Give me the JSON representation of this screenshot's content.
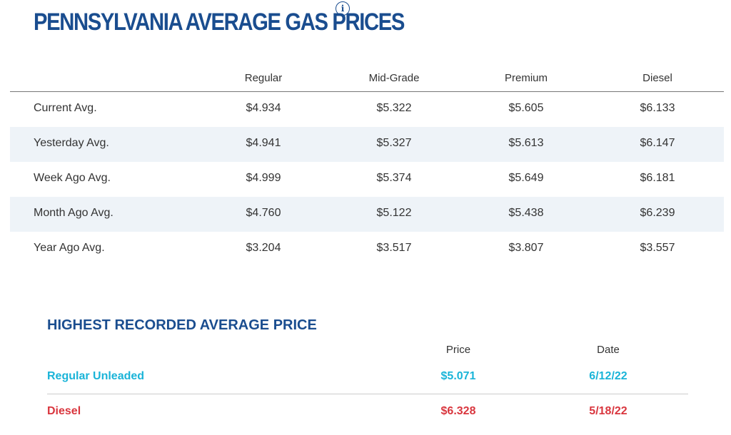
{
  "header": {
    "title": "Pennsylvania Average Gas Prices",
    "info_icon_glyph": "i",
    "title_color": "#1a4d8f"
  },
  "price_table": {
    "columns": [
      "Regular",
      "Mid-Grade",
      "Premium",
      "Diesel"
    ],
    "rows": [
      {
        "label": "Current Avg.",
        "values": [
          "$4.934",
          "$5.322",
          "$5.605",
          "$6.133"
        ]
      },
      {
        "label": "Yesterday Avg.",
        "values": [
          "$4.941",
          "$5.327",
          "$5.613",
          "$6.147"
        ]
      },
      {
        "label": "Week Ago Avg.",
        "values": [
          "$4.999",
          "$5.374",
          "$5.649",
          "$6.181"
        ]
      },
      {
        "label": "Month Ago Avg.",
        "values": [
          "$4.760",
          "$5.122",
          "$5.438",
          "$6.239"
        ]
      },
      {
        "label": "Year Ago Avg.",
        "values": [
          "$3.204",
          "$3.517",
          "$3.807",
          "$3.557"
        ]
      }
    ],
    "shaded_row_color": "#eef3f8"
  },
  "record": {
    "title": "HIGHEST RECORDED AVERAGE PRICE",
    "columns": [
      "Price",
      "Date"
    ],
    "rows": [
      {
        "label": "Regular Unleaded",
        "price": "$5.071",
        "date": "6/12/22",
        "color": "#1ab4d8"
      },
      {
        "label": "Diesel",
        "price": "$6.328",
        "date": "5/18/22",
        "color": "#d9363e"
      }
    ]
  }
}
